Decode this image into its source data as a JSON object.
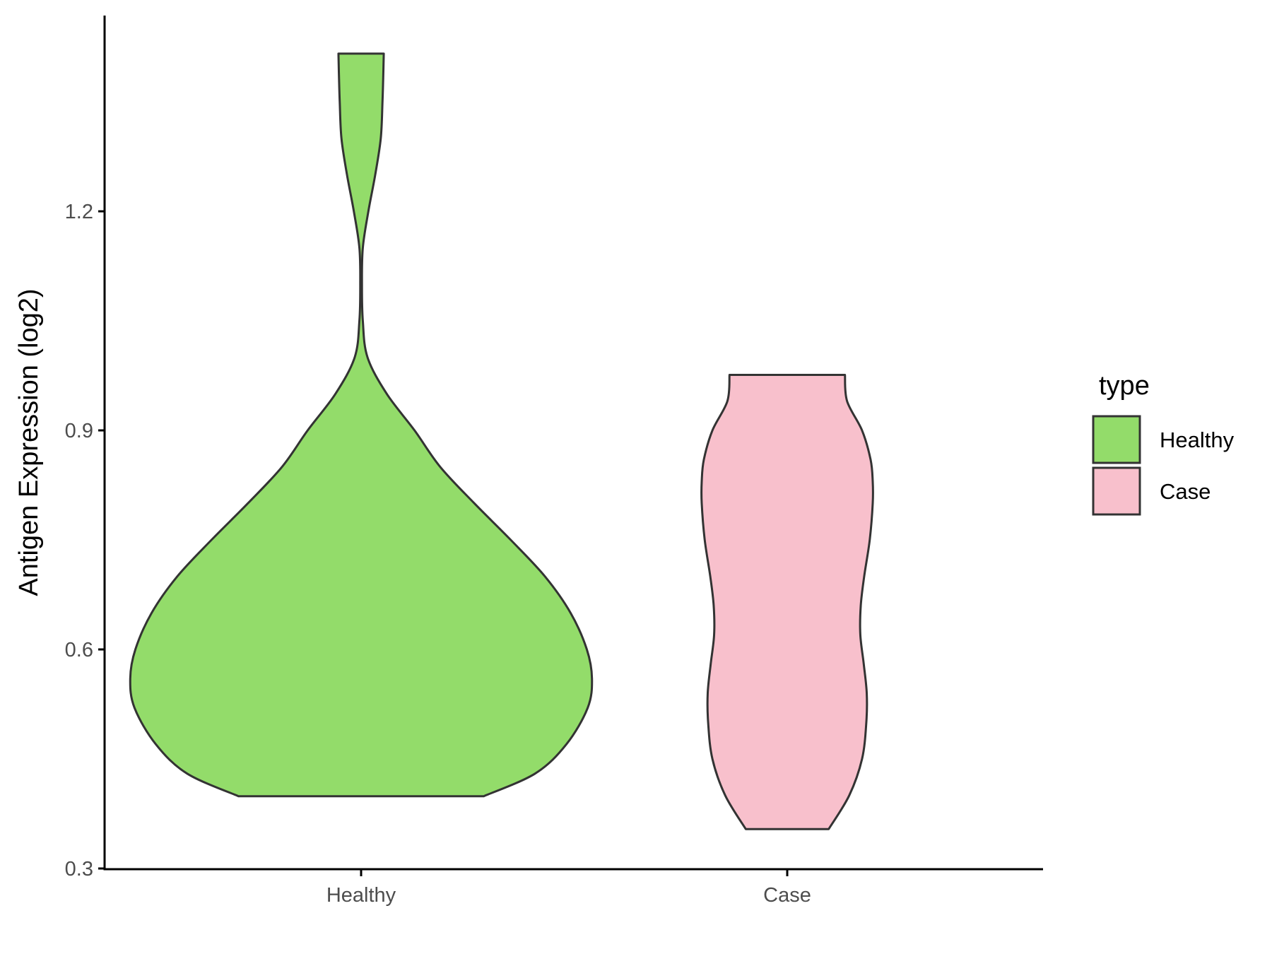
{
  "chart_data": {
    "type": "violin",
    "ylabel": "Antigen Expression (log2)",
    "xlabel": "",
    "ylim": [
      0.3,
      1.47
    ],
    "yticks": [
      0.3,
      0.6,
      0.9,
      1.2
    ],
    "ytick_labels": [
      "0.3",
      "0.6",
      "0.9",
      "1.2"
    ],
    "categories": [
      "Healthy",
      "Case"
    ],
    "grid": false,
    "legend": {
      "title": "type",
      "position": "right",
      "entries": [
        {
          "label": "Healthy",
          "color": "#93dc6a"
        },
        {
          "label": "Case",
          "color": "#f8c0cc"
        }
      ]
    },
    "series": [
      {
        "name": "Healthy",
        "color": "#93dc6a",
        "min": 0.399,
        "max": 1.416,
        "density": [
          [
            0.399,
            0.287
          ],
          [
            0.43,
            0.407
          ],
          [
            0.47,
            0.48
          ],
          [
            0.52,
            0.53
          ],
          [
            0.56,
            0.54
          ],
          [
            0.6,
            0.528
          ],
          [
            0.65,
            0.49
          ],
          [
            0.7,
            0.43
          ],
          [
            0.75,
            0.35
          ],
          [
            0.8,
            0.265
          ],
          [
            0.85,
            0.185
          ],
          [
            0.9,
            0.125
          ],
          [
            0.95,
            0.06
          ],
          [
            1.0,
            0.015
          ],
          [
            1.05,
            0.004
          ],
          [
            1.1,
            0.002
          ],
          [
            1.15,
            0.004
          ],
          [
            1.2,
            0.017
          ],
          [
            1.25,
            0.033
          ],
          [
            1.3,
            0.046
          ],
          [
            1.35,
            0.05
          ],
          [
            1.39,
            0.052
          ],
          [
            1.416,
            0.053
          ]
        ]
      },
      {
        "name": "Case",
        "color": "#f8c0cc",
        "min": 0.354,
        "max": 0.976,
        "density": [
          [
            0.354,
            0.097
          ],
          [
            0.4,
            0.145
          ],
          [
            0.45,
            0.175
          ],
          [
            0.5,
            0.185
          ],
          [
            0.54,
            0.186
          ],
          [
            0.58,
            0.179
          ],
          [
            0.62,
            0.171
          ],
          [
            0.66,
            0.172
          ],
          [
            0.7,
            0.18
          ],
          [
            0.75,
            0.193
          ],
          [
            0.8,
            0.2
          ],
          [
            0.83,
            0.2
          ],
          [
            0.86,
            0.195
          ],
          [
            0.9,
            0.175
          ],
          [
            0.94,
            0.14
          ],
          [
            0.976,
            0.135
          ]
        ]
      }
    ]
  }
}
